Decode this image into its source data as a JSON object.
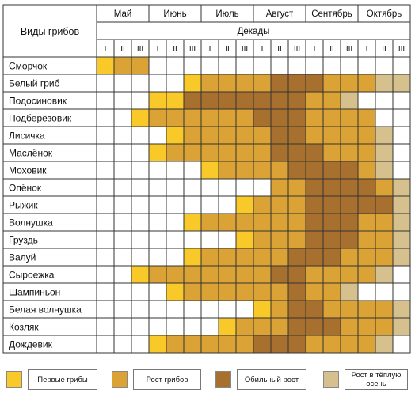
{
  "chart_data": {
    "type": "heatmap",
    "row_header": "Виды грибов",
    "column_header": "Декады",
    "months": [
      "Май",
      "Июнь",
      "Июль",
      "Август",
      "Сентябрь",
      "Октябрь"
    ],
    "decades": [
      "I",
      "II",
      "III"
    ],
    "colors": {
      "0": "#ffffff",
      "1": "#f9c92a",
      "2": "#dba336",
      "3": "#a8702f",
      "4": "#d6c08e"
    },
    "legend": [
      {
        "level": 1,
        "label": "Первые грибы"
      },
      {
        "level": 2,
        "label": "Рост грибов"
      },
      {
        "level": 3,
        "label": "Обильный рост"
      },
      {
        "level": 4,
        "label": "Рост в тёплую осень"
      }
    ],
    "rows": [
      {
        "name": "Сморчок",
        "levels": [
          1,
          2,
          2,
          0,
          0,
          0,
          0,
          0,
          0,
          0,
          0,
          0,
          0,
          0,
          0,
          0,
          0,
          0
        ]
      },
      {
        "name": "Белый гриб",
        "levels": [
          0,
          0,
          0,
          0,
          0,
          1,
          2,
          2,
          2,
          2,
          3,
          3,
          3,
          2,
          2,
          2,
          4,
          4
        ]
      },
      {
        "name": "Подосиновик",
        "levels": [
          0,
          0,
          0,
          1,
          1,
          3,
          3,
          3,
          3,
          3,
          3,
          3,
          2,
          2,
          4,
          0,
          0,
          0
        ]
      },
      {
        "name": "Подберёзовик",
        "levels": [
          0,
          0,
          1,
          2,
          2,
          2,
          2,
          2,
          2,
          3,
          3,
          3,
          2,
          2,
          2,
          2,
          0,
          0
        ]
      },
      {
        "name": "Лисичка",
        "levels": [
          0,
          0,
          0,
          0,
          1,
          2,
          2,
          2,
          2,
          2,
          3,
          3,
          2,
          2,
          2,
          2,
          4,
          0
        ]
      },
      {
        "name": "Маслёнок",
        "levels": [
          0,
          0,
          0,
          1,
          2,
          2,
          2,
          2,
          2,
          2,
          3,
          3,
          3,
          2,
          2,
          2,
          4,
          0
        ]
      },
      {
        "name": "Моховик",
        "levels": [
          0,
          0,
          0,
          0,
          0,
          0,
          1,
          2,
          2,
          2,
          2,
          3,
          3,
          3,
          3,
          2,
          4,
          0
        ]
      },
      {
        "name": "Опёнок",
        "levels": [
          0,
          0,
          0,
          0,
          0,
          0,
          0,
          0,
          0,
          0,
          2,
          2,
          3,
          3,
          3,
          3,
          2,
          4
        ]
      },
      {
        "name": "Рыжик",
        "levels": [
          0,
          0,
          0,
          0,
          0,
          0,
          0,
          0,
          1,
          2,
          2,
          2,
          3,
          3,
          3,
          3,
          3,
          4
        ]
      },
      {
        "name": "Волнушка",
        "levels": [
          0,
          0,
          0,
          0,
          0,
          1,
          2,
          2,
          2,
          2,
          2,
          2,
          3,
          3,
          3,
          2,
          2,
          4
        ]
      },
      {
        "name": "Груздь",
        "levels": [
          0,
          0,
          0,
          0,
          0,
          0,
          0,
          0,
          1,
          2,
          2,
          2,
          3,
          3,
          3,
          2,
          2,
          4
        ]
      },
      {
        "name": "Валуй",
        "levels": [
          0,
          0,
          0,
          0,
          0,
          1,
          2,
          2,
          2,
          2,
          2,
          3,
          3,
          3,
          2,
          2,
          2,
          4
        ]
      },
      {
        "name": "Сыроежка",
        "levels": [
          0,
          0,
          1,
          2,
          2,
          2,
          2,
          2,
          2,
          2,
          3,
          3,
          2,
          2,
          2,
          2,
          4,
          0
        ]
      },
      {
        "name": "Шампиньон",
        "levels": [
          0,
          0,
          0,
          0,
          1,
          2,
          2,
          2,
          2,
          2,
          2,
          3,
          2,
          2,
          4,
          0,
          0,
          0
        ]
      },
      {
        "name": "Белая волнушка",
        "levels": [
          0,
          0,
          0,
          0,
          0,
          0,
          0,
          0,
          0,
          1,
          2,
          3,
          3,
          2,
          2,
          2,
          2,
          4
        ]
      },
      {
        "name": "Козляк",
        "levels": [
          0,
          0,
          0,
          0,
          0,
          0,
          0,
          1,
          2,
          2,
          2,
          3,
          3,
          3,
          2,
          2,
          2,
          4
        ]
      },
      {
        "name": "Дождевик",
        "levels": [
          0,
          0,
          0,
          1,
          2,
          2,
          2,
          2,
          2,
          3,
          3,
          3,
          2,
          2,
          2,
          2,
          4,
          0
        ]
      }
    ]
  }
}
